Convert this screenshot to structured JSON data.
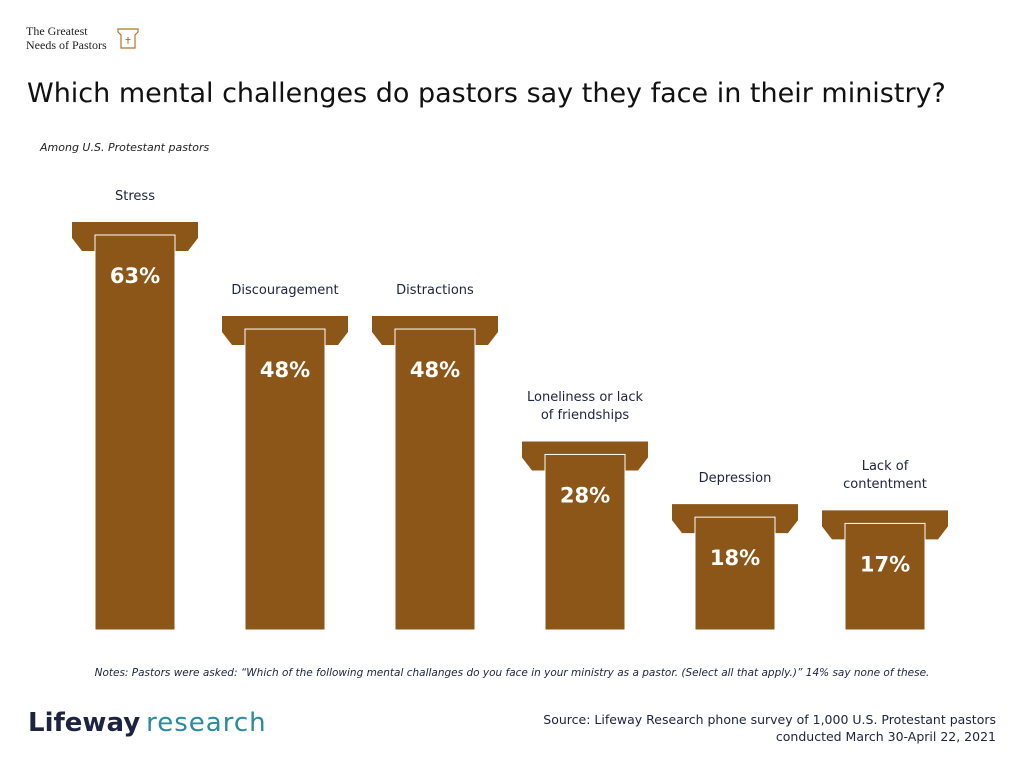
{
  "brand": {
    "lines": [
      "The Greatest",
      "Needs of Pastors"
    ]
  },
  "chart_data": {
    "type": "bar",
    "title": "Which mental challenges do pastors say they face in their ministry?",
    "subtitle": "Among U.S. Protestant pastors",
    "categories": [
      "Stress",
      "Discouragement",
      "Distractions",
      "Loneliness or lack of friendships",
      "Depression",
      "Lack of contentment"
    ],
    "values": [
      63,
      48,
      48,
      28,
      18,
      17
    ],
    "value_labels": [
      "63%",
      "48%",
      "48%",
      "28%",
      "18%",
      "17%"
    ],
    "color": "#8b5618"
  },
  "notes": "Notes: Pastors were asked: “Which of the following mental challanges do you face in your ministry as a pastor. (Select all that apply.)” 14% say none of these.",
  "footer": {
    "logo_bold": "Lifeway",
    "logo_light": "research",
    "source": [
      "Source: Lifeway Research phone survey of 1,000 U.S. Protestant pastors",
      "conducted March 30-April 22, 2021"
    ]
  }
}
